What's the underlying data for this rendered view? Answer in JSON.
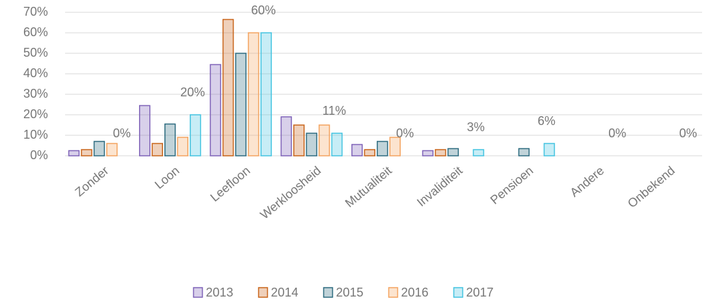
{
  "chart_data": {
    "type": "bar",
    "categories": [
      "Zonder",
      "Loon",
      "Leefloon",
      "Werkloosheid",
      "Mutualiteit",
      "Invaliditeit",
      "Pensioen",
      "Andere",
      "Onbekend"
    ],
    "series": [
      {
        "name": "2013",
        "color": "#7f63b8",
        "values": [
          2.5,
          24.5,
          44.5,
          19,
          5.5,
          2.5,
          0,
          0,
          0
        ]
      },
      {
        "name": "2014",
        "color": "#c9651b",
        "values": [
          3,
          6,
          66.5,
          15,
          3,
          3,
          0,
          0,
          0
        ]
      },
      {
        "name": "2015",
        "color": "#2e6c80",
        "values": [
          7,
          15.5,
          50,
          11,
          7,
          3.5,
          3.5,
          0,
          0
        ]
      },
      {
        "name": "2016",
        "color": "#f4a460",
        "values": [
          6,
          9,
          60,
          15,
          9,
          0,
          0,
          0,
          0
        ]
      },
      {
        "name": "2017",
        "color": "#44c4e0",
        "values": [
          0,
          20,
          60,
          11,
          0,
          3,
          6,
          0,
          0
        ],
        "value_labels": [
          "0%",
          "20%",
          "60%",
          "11%",
          "0%",
          "3%",
          "6%",
          "0%",
          "0%"
        ]
      }
    ],
    "ylim": [
      0,
      70
    ],
    "yticks": [
      {
        "value": 0,
        "label": "0%"
      },
      {
        "value": 10,
        "label": "10%"
      },
      {
        "value": 20,
        "label": "20%"
      },
      {
        "value": 30,
        "label": "30%"
      },
      {
        "value": 40,
        "label": "40%"
      },
      {
        "value": 50,
        "label": "50%"
      },
      {
        "value": 60,
        "label": "60%"
      },
      {
        "value": 70,
        "label": "70%"
      }
    ],
    "grid": true,
    "legend": "bottom"
  }
}
